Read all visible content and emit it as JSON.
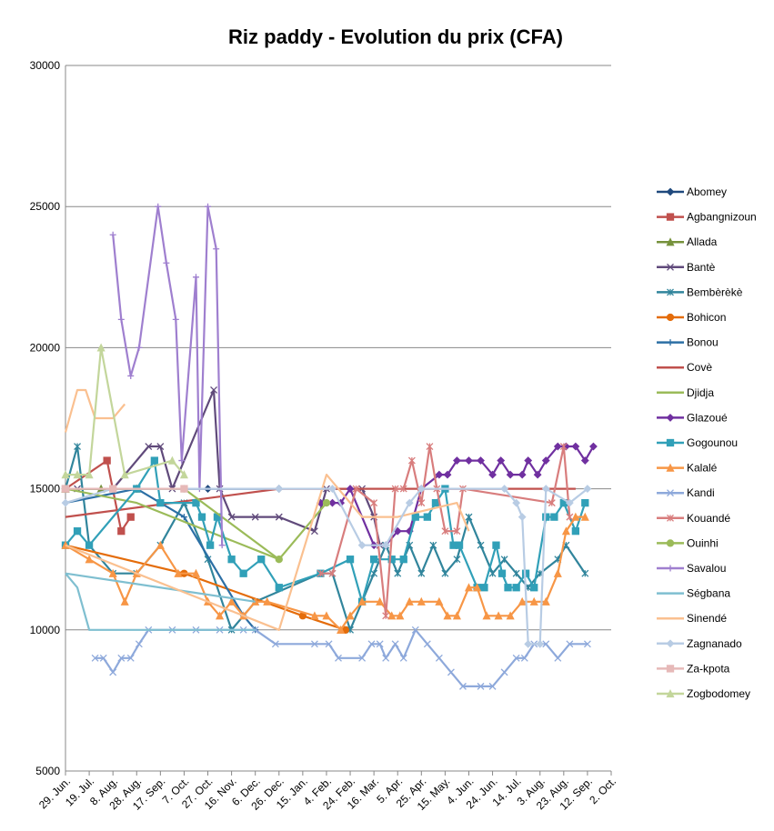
{
  "chart_data": {
    "type": "line",
    "title": "Riz paddy - Evolution du prix (CFA)",
    "xlim": [
      0,
      460
    ],
    "xticks": [
      {
        "value": 0,
        "label": "29. Jun."
      },
      {
        "value": 20,
        "label": "19. Jul."
      },
      {
        "value": 40,
        "label": "8. Aug."
      },
      {
        "value": 60,
        "label": "28. Aug."
      },
      {
        "value": 80,
        "label": "17. Sep."
      },
      {
        "value": 100,
        "label": "7. Oct."
      },
      {
        "value": 120,
        "label": "27. Oct."
      },
      {
        "value": 140,
        "label": "16. Nov."
      },
      {
        "value": 160,
        "label": "6. Dec."
      },
      {
        "value": 180,
        "label": "26. Dec."
      },
      {
        "value": 200,
        "label": "15. Jan."
      },
      {
        "value": 220,
        "label": "4. Feb."
      },
      {
        "value": 240,
        "label": "24. Feb."
      },
      {
        "value": 260,
        "label": "16. Mar."
      },
      {
        "value": 280,
        "label": "5. Apr."
      },
      {
        "value": 300,
        "label": "25. Apr."
      },
      {
        "value": 320,
        "label": "15. May."
      },
      {
        "value": 340,
        "label": "4. Jun."
      },
      {
        "value": 360,
        "label": "24. Jun."
      },
      {
        "value": 380,
        "label": "14. Jul."
      },
      {
        "value": 400,
        "label": "3. Aug."
      },
      {
        "value": 420,
        "label": "23. Aug."
      },
      {
        "value": 440,
        "label": "12. Sep."
      },
      {
        "value": 460,
        "label": "2. Oct."
      }
    ],
    "ylim": [
      5000,
      30000
    ],
    "yticks": [
      5000,
      10000,
      15000,
      20000,
      25000,
      30000
    ],
    "grid": true,
    "series": [
      {
        "name": "Abomey",
        "color": "#1f497d",
        "marker": "diamond",
        "x": [
          0,
          60,
          120,
          180
        ],
        "values": [
          15000,
          15000,
          15000,
          15000
        ]
      },
      {
        "name": "Agbangnizoun",
        "color": "#c0504d",
        "marker": "square",
        "x": [
          0,
          35,
          47,
          55
        ],
        "values": [
          15000,
          16000,
          13500,
          14000
        ]
      },
      {
        "name": "Allada",
        "color": "#76923c",
        "marker": "triangle",
        "x": [
          0,
          30,
          60
        ],
        "values": [
          15000,
          15000,
          15000
        ]
      },
      {
        "name": "Bantè",
        "color": "#604a7b",
        "marker": "x",
        "x": [
          10,
          40,
          70,
          80,
          90,
          125,
          130,
          140,
          160,
          180,
          210,
          220,
          250,
          260,
          265
        ],
        "values": [
          15000,
          15000,
          16500,
          16500,
          15000,
          18500,
          15000,
          14000,
          14000,
          14000,
          13500,
          15000,
          15000,
          14000,
          13000
        ]
      },
      {
        "name": "Bembèrèkè",
        "color": "#31859c",
        "marker": "asterisk",
        "x": [
          0,
          10,
          20,
          40,
          60,
          80,
          100,
          120,
          140,
          160,
          215,
          225,
          240,
          250,
          260,
          270,
          280,
          290,
          300,
          310,
          320,
          330,
          340,
          350,
          360,
          370,
          380,
          390,
          400,
          415,
          422,
          438
        ],
        "values": [
          15000,
          16500,
          13000,
          12000,
          12000,
          13000,
          14500,
          12500,
          10000,
          11000,
          12000,
          12000,
          10000,
          11000,
          12000,
          13000,
          12000,
          13000,
          12000,
          13000,
          12000,
          12500,
          14000,
          13000,
          12000,
          12500,
          12000,
          11500,
          12000,
          12500,
          13000,
          12000
        ]
      },
      {
        "name": "Bohicon",
        "color": "#e46c0a",
        "marker": "circle",
        "x": [
          0,
          100,
          200,
          236
        ],
        "values": [
          13000,
          12000,
          10500,
          10000
        ]
      },
      {
        "name": "Bonou",
        "color": "#2c6fa5",
        "marker": "plus",
        "x": [
          0,
          60,
          100,
          150,
          160
        ],
        "values": [
          14500,
          15000,
          14000,
          10500,
          10000
        ]
      },
      {
        "name": "Covè",
        "color": "#c0504d",
        "marker": "none",
        "x": [
          0,
          180,
          430
        ],
        "values": [
          14000,
          15000,
          15000
        ]
      },
      {
        "name": "Djidja",
        "color": "#9bbb59",
        "marker": "none",
        "x": [
          0,
          60,
          180
        ],
        "values": [
          15000,
          14500,
          12500
        ]
      },
      {
        "name": "Glazoué",
        "color": "#7030a0",
        "marker": "diamond",
        "x": [
          215,
          225,
          232,
          240,
          260,
          270,
          280,
          290,
          300,
          315,
          322,
          330,
          340,
          350,
          360,
          367,
          375,
          385,
          390,
          398,
          405,
          415,
          422,
          430,
          438,
          445
        ],
        "values": [
          14500,
          14500,
          14500,
          15000,
          13000,
          13000,
          13500,
          13500,
          15000,
          15500,
          15500,
          16000,
          16000,
          16000,
          15500,
          16000,
          15500,
          15500,
          16000,
          15500,
          16000,
          16500,
          16500,
          16500,
          16000,
          16500
        ]
      },
      {
        "name": "Gogounou",
        "color": "#31a0b8",
        "marker": "square",
        "x": [
          0,
          10,
          20,
          60,
          75,
          80,
          110,
          115,
          122,
          128,
          140,
          150,
          165,
          180,
          215,
          240,
          250,
          260,
          275,
          285,
          295,
          305,
          312,
          320,
          327,
          332,
          347,
          353,
          363,
          368,
          373,
          380,
          388,
          395,
          405,
          412,
          420,
          430,
          438
        ],
        "values": [
          13000,
          13500,
          13000,
          15000,
          16000,
          14500,
          14500,
          14000,
          13000,
          14000,
          12500,
          12000,
          12500,
          11500,
          12000,
          12500,
          11000,
          12500,
          12500,
          12500,
          14000,
          14000,
          14500,
          15000,
          13000,
          13000,
          11500,
          11500,
          13000,
          12000,
          11500,
          11500,
          12000,
          11500,
          14000,
          14000,
          14500,
          13500,
          14500
        ]
      },
      {
        "name": "Kalalé",
        "color": "#f79646",
        "marker": "triangle",
        "x": [
          0,
          20,
          40,
          50,
          60,
          80,
          95,
          110,
          120,
          130,
          140,
          150,
          160,
          170,
          210,
          220,
          232,
          240,
          250,
          265,
          275,
          282,
          290,
          300,
          315,
          322,
          330,
          340,
          347,
          355,
          365,
          375,
          385,
          395,
          405,
          415,
          422,
          430,
          438
        ],
        "values": [
          13000,
          12500,
          12000,
          11000,
          12000,
          13000,
          12000,
          12000,
          11000,
          10500,
          11000,
          10500,
          11000,
          11000,
          10500,
          10500,
          10000,
          10500,
          11000,
          11000,
          10500,
          10500,
          11000,
          11000,
          11000,
          10500,
          10500,
          11500,
          11500,
          10500,
          10500,
          10500,
          11000,
          11000,
          11000,
          12000,
          13500,
          14000,
          14000
        ]
      },
      {
        "name": "Kandi",
        "color": "#8ea9db",
        "marker": "x",
        "x": [
          25,
          32,
          40,
          47,
          55,
          62,
          70,
          90,
          110,
          130,
          150,
          160,
          177,
          210,
          222,
          230,
          250,
          258,
          265,
          270,
          278,
          285,
          295,
          305,
          315,
          325,
          335,
          350,
          360,
          370,
          380,
          387,
          395,
          405,
          415,
          425,
          440
        ],
        "values": [
          9000,
          9000,
          8500,
          9000,
          9000,
          9500,
          10000,
          10000,
          10000,
          10000,
          10000,
          10000,
          9500,
          9500,
          9500,
          9000,
          9000,
          9500,
          9500,
          9000,
          9500,
          9000,
          10000,
          9500,
          9000,
          8500,
          8000,
          8000,
          8000,
          8500,
          9000,
          9000,
          9500,
          9500,
          9000,
          9500,
          9500
        ]
      },
      {
        "name": "Kouandé",
        "color": "#d87d7d",
        "marker": "asterisk",
        "x": [
          215,
          225,
          245,
          260,
          270,
          278,
          285,
          292,
          300,
          307,
          313,
          320,
          330,
          335,
          410,
          420,
          425
        ],
        "values": [
          12000,
          12000,
          15000,
          14500,
          10500,
          15000,
          15000,
          16000,
          14500,
          16500,
          15000,
          13500,
          13500,
          15000,
          14500,
          16500,
          14000
        ]
      },
      {
        "name": "Ouinhi",
        "color": "#9bbb59",
        "marker": "circle",
        "x": [
          0,
          100,
          180,
          220
        ],
        "values": [
          15000,
          15000,
          12500,
          14500
        ]
      },
      {
        "name": "Savalou",
        "color": "#9f7fcf",
        "marker": "plus",
        "x": [
          40,
          47,
          55,
          62,
          78,
          85,
          93,
          98,
          110,
          113,
          120,
          127,
          132
        ],
        "values": [
          24000,
          21000,
          19000,
          20000,
          25000,
          23000,
          21000,
          16000,
          22500,
          15000,
          25000,
          23500,
          13000
        ]
      },
      {
        "name": "Ségbana",
        "color": "#7fbfd0",
        "marker": "none",
        "x": [
          0,
          10,
          20,
          160,
          null,
          0,
          160
        ],
        "values": [
          12000,
          11500,
          10000,
          10000,
          null,
          12000,
          11000
        ]
      },
      {
        "name": "Sinendé",
        "color": "#fac090",
        "marker": "none",
        "x": [
          0,
          10,
          17,
          25,
          40,
          50,
          null,
          0,
          180,
          220,
          250,
          280,
          330,
          340
        ],
        "values": [
          17000,
          18500,
          18500,
          17500,
          17500,
          18000,
          null,
          13000,
          10000,
          15500,
          14000,
          14000,
          14500,
          13500
        ]
      },
      {
        "name": "Zagnanado",
        "color": "#b8cce4",
        "marker": "diamond",
        "x": [
          0,
          40,
          100,
          180,
          225,
          250,
          270,
          290,
          300,
          370,
          380,
          385,
          390,
          400,
          405,
          425,
          440
        ],
        "values": [
          14500,
          15000,
          15000,
          15000,
          15000,
          13000,
          13000,
          14500,
          15000,
          15000,
          14500,
          14000,
          9500,
          9500,
          15000,
          14500,
          15000
        ]
      },
      {
        "name": "Za-kpota",
        "color": "#e6b9b8",
        "marker": "square",
        "x": [
          0,
          40,
          100
        ],
        "values": [
          15000,
          15000,
          15000
        ]
      },
      {
        "name": "Zogbodomey",
        "color": "#c3d69b",
        "marker": "triangle",
        "x": [
          0,
          10,
          20,
          30,
          50,
          90,
          100
        ],
        "values": [
          15500,
          15500,
          15500,
          20000,
          15500,
          16000,
          15500
        ]
      }
    ]
  }
}
